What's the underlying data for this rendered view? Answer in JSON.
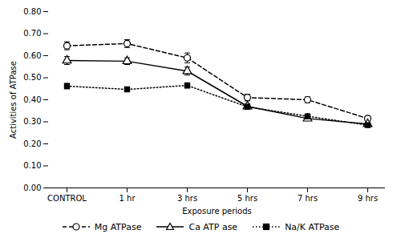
{
  "chart_data": {
    "type": "line",
    "xlabel": "Exposure periods",
    "ylabel": "Activities of ATPase",
    "categories": [
      "CONTROL",
      "1 hr",
      "3 hrs",
      "5 hrs",
      "7 hrs",
      "9 hrs"
    ],
    "series": [
      {
        "name": "Mg ATPase",
        "color": "black",
        "marker": "circle",
        "line_style": "dashed",
        "values": [
          0.645,
          0.655,
          0.59,
          0.41,
          0.4,
          0.315
        ],
        "errors": [
          0.018,
          0.018,
          0.022,
          0.015,
          0.013,
          0.01
        ]
      },
      {
        "name": "Ca ATP ase",
        "color": "black",
        "marker": "triangle",
        "line_style": "solid",
        "values": [
          0.578,
          0.575,
          0.53,
          0.37,
          0.315,
          0.29
        ],
        "errors": [
          0.018,
          0.015,
          0.018,
          0.012,
          0.01,
          0.008
        ]
      },
      {
        "name": "Na/K ATPase",
        "color": "black",
        "marker": "square",
        "line_style": "dotted",
        "values": [
          0.462,
          0.447,
          0.465,
          0.368,
          0.325,
          0.285
        ],
        "errors": [
          0.012,
          0.01,
          0.012,
          0.01,
          0.01,
          0.008
        ]
      }
    ],
    "ylim": [
      0.0,
      0.8
    ],
    "yticks": [
      {
        "value": 0.0,
        "label": "0.00"
      },
      {
        "value": 0.1,
        "label": "0.10"
      },
      {
        "value": 0.2,
        "label": "0.20"
      },
      {
        "value": 0.3,
        "label": "0.30"
      },
      {
        "value": 0.4,
        "label": "0.40"
      },
      {
        "value": 0.5,
        "label": "0.50"
      },
      {
        "value": 0.6,
        "label": "0.60"
      },
      {
        "value": 0.7,
        "label": "0.70"
      },
      {
        "value": 0.8,
        "label": "0.80"
      }
    ],
    "legend": "bottom"
  }
}
